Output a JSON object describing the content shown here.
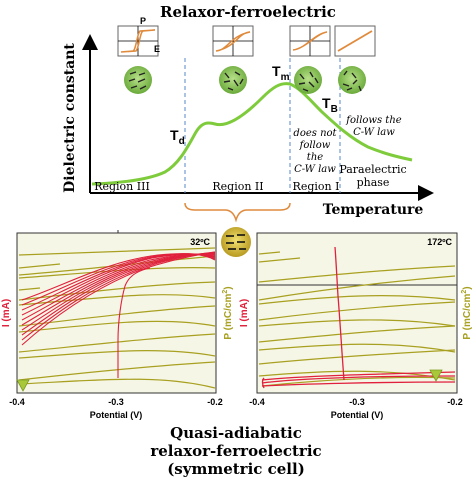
{
  "top": {
    "title": "Relaxor-ferroelectric",
    "y_axis_label": "Dielectric constant",
    "x_axis_label": "Temperature",
    "loop_labels": {
      "P": "P",
      "E": "E"
    },
    "points": {
      "Td": "T",
      "Td_sub": "d",
      "Tm": "T",
      "Tm_sub": "m",
      "TB": "T",
      "TB_sub": "B"
    },
    "regions": [
      "Region III",
      "Region II",
      "Region I"
    ],
    "paraelectric": [
      "Paraelectric",
      "phase"
    ],
    "not_follow": [
      "does not",
      "follow",
      "the",
      "C-W law"
    ],
    "follows": [
      "follows the",
      "C-W law"
    ]
  },
  "left_panel": {
    "temp_label": "32ºC",
    "y_label": "I (mA)",
    "x_label": "Potential (V)",
    "x_ticks": [
      "-0.4",
      "-0.3",
      "-0.2"
    ]
  },
  "right_panel": {
    "temp_label": "172ºC",
    "y_label_p": "P",
    "y_label_unit": "(mC/cm",
    "y_label_sup": "2",
    "y_label_close": ")",
    "i_label": "I (mA)",
    "x_label": "Potential (V)",
    "x_ticks": [
      "-0.4",
      "-0.3",
      "-0.2"
    ]
  },
  "caption": [
    "Quasi-adiabatic",
    "relaxor-ferroelectric",
    "(symmetric cell)"
  ],
  "colors": {
    "curve": "#7ecb3c",
    "panel_bg": "#f6f6e6",
    "red": "#e0203c",
    "olive": "#a8a020",
    "orange": "#e08a3c",
    "dash": "#5a8ac8"
  }
}
